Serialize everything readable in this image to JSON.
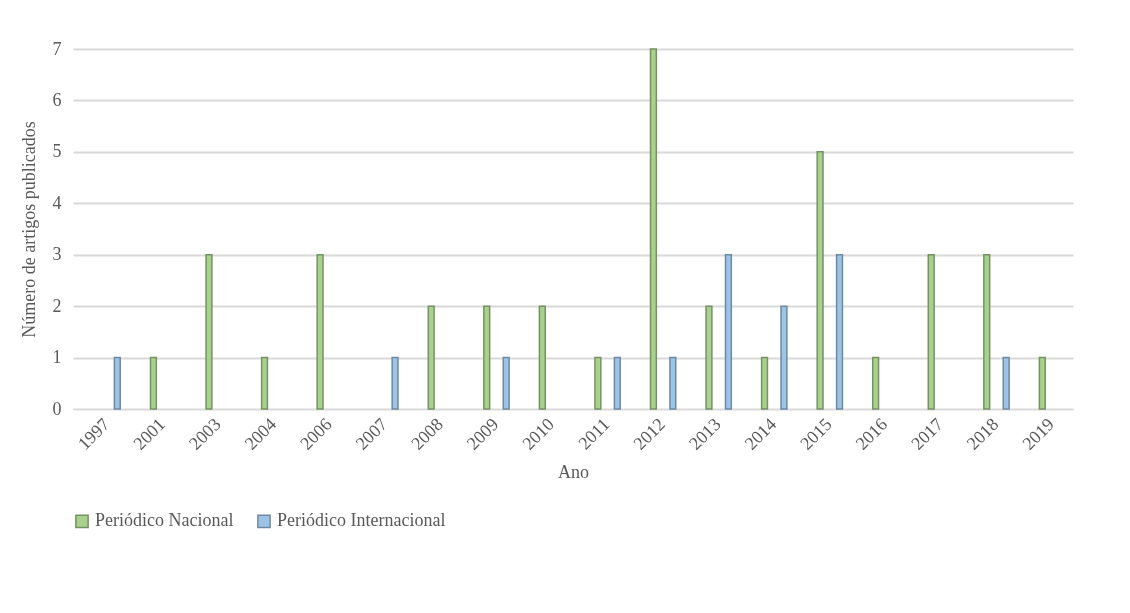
{
  "chart_data": {
    "type": "bar",
    "xlabel": "Ano",
    "ylabel": "Número de artigos publicados",
    "categories": [
      "1997",
      "2001",
      "2003",
      "2004",
      "2006",
      "2007",
      "2008",
      "2009",
      "2010",
      "2011",
      "2012",
      "2013",
      "2014",
      "2015",
      "2016",
      "2017",
      "2018",
      "2019"
    ],
    "series": [
      {
        "name": "Periódico Nacional",
        "color": "#a9d18e",
        "values": [
          null,
          1,
          3,
          1,
          3,
          null,
          2,
          2,
          2,
          1,
          7,
          2,
          1,
          5,
          1,
          3,
          3,
          1
        ]
      },
      {
        "name": "Periódico Internacional",
        "color": "#9dc3e6",
        "values": [
          1,
          null,
          null,
          null,
          null,
          1,
          null,
          1,
          null,
          1,
          1,
          3,
          2,
          3,
          null,
          null,
          1,
          null
        ]
      }
    ],
    "ylim": [
      0,
      7
    ],
    "yticks": [
      0,
      1,
      2,
      3,
      4,
      5,
      6,
      7
    ],
    "grid": "y",
    "legend": "bottom"
  }
}
